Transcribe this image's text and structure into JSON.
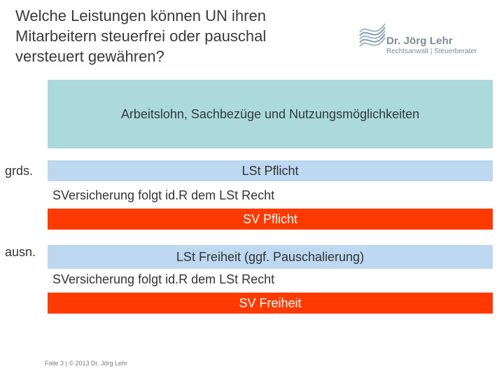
{
  "title": "Welche Leistungen können UN ihren Mitarbeitern steuerfrei oder pauschal versteuert gewähren?",
  "logo": {
    "name": "Dr. Jörg Lehr",
    "subtitle": "Rechtsanwalt | Steuerberater",
    "icon": "wave-logo-icon",
    "color": "#7d8b99"
  },
  "main_box": {
    "text": "Arbeitslohn, Sachbezüge und Nutzungsmöglichkeiten",
    "color": "#acd9da"
  },
  "section_grds": {
    "label": "grds.",
    "tax_bar": "LSt Pflicht",
    "note": "SVersicherung folgt id.R dem LSt Recht",
    "sv_bar": "SV Pflicht"
  },
  "section_ausn": {
    "label": "ausn.",
    "tax_bar": "LSt Freiheit (ggf. Pauschalierung)",
    "note": "SVersicherung folgt id.R dem LSt Recht",
    "sv_bar": "SV Freiheit"
  },
  "colors": {
    "blue_bar": "#bdd8f0",
    "red_bar": "#ff3a00"
  },
  "footer": "Folie 3 | © 2013 Dr. Jörg Lehr"
}
